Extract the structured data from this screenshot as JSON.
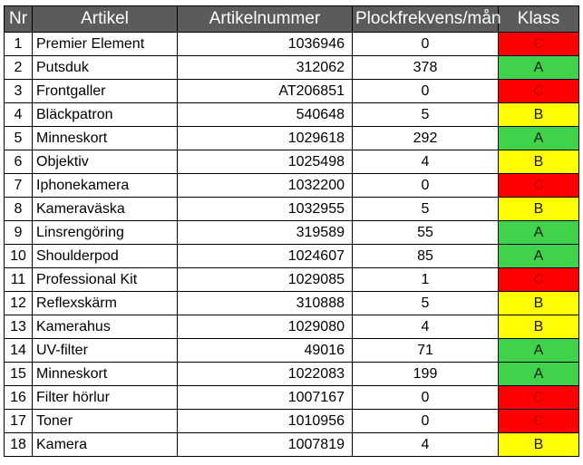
{
  "headers": {
    "nr": "Nr",
    "artikel": "Artikel",
    "artikelnummer": "Artikelnummer",
    "plockfrekvens": "Plockfrekvens/mån",
    "klass": "Klass"
  },
  "colors": {
    "header_bg": "#5b5b5b",
    "class_A": "#3fd24a",
    "class_B": "#ffff00",
    "class_C": "#ff0000"
  },
  "rows": [
    {
      "nr": "1",
      "artikel": "Premier Element",
      "artikelnummer": "1036946",
      "plockfrekvens": "0",
      "klass": "C"
    },
    {
      "nr": "2",
      "artikel": "Putsduk",
      "artikelnummer": "312062",
      "plockfrekvens": "378",
      "klass": "A"
    },
    {
      "nr": "3",
      "artikel": "Frontgaller",
      "artikelnummer": "AT206851",
      "plockfrekvens": "0",
      "klass": "C"
    },
    {
      "nr": "4",
      "artikel": "Bläckpatron",
      "artikelnummer": "540648",
      "plockfrekvens": "5",
      "klass": "B"
    },
    {
      "nr": "5",
      "artikel": "Minneskort",
      "artikelnummer": "1029618",
      "plockfrekvens": "292",
      "klass": "A"
    },
    {
      "nr": "6",
      "artikel": "Objektiv",
      "artikelnummer": "1025498",
      "plockfrekvens": "4",
      "klass": "B"
    },
    {
      "nr": "7",
      "artikel": "Iphonekamera",
      "artikelnummer": "1032200",
      "plockfrekvens": "0",
      "klass": "C"
    },
    {
      "nr": "8",
      "artikel": "Kameraväska",
      "artikelnummer": "1032955",
      "plockfrekvens": "5",
      "klass": "B"
    },
    {
      "nr": "9",
      "artikel": "Linsrengöring",
      "artikelnummer": "319589",
      "plockfrekvens": "55",
      "klass": "A"
    },
    {
      "nr": "10",
      "artikel": "Shoulderpod",
      "artikelnummer": "1024607",
      "plockfrekvens": "85",
      "klass": "A"
    },
    {
      "nr": "11",
      "artikel": "Professional Kit",
      "artikelnummer": "1029085",
      "plockfrekvens": "1",
      "klass": "C"
    },
    {
      "nr": "12",
      "artikel": "Reflexskärm",
      "artikelnummer": "310888",
      "plockfrekvens": "5",
      "klass": "B"
    },
    {
      "nr": "13",
      "artikel": "Kamerahus",
      "artikelnummer": "1029080",
      "plockfrekvens": "4",
      "klass": "B"
    },
    {
      "nr": "14",
      "artikel": "UV-filter",
      "artikelnummer": "49016",
      "plockfrekvens": "71",
      "klass": "A"
    },
    {
      "nr": "15",
      "artikel": "Minneskort",
      "artikelnummer": "1022083",
      "plockfrekvens": "199",
      "klass": "A"
    },
    {
      "nr": "16",
      "artikel": "Filter hörlur",
      "artikelnummer": "1007167",
      "plockfrekvens": "0",
      "klass": "C"
    },
    {
      "nr": "17",
      "artikel": "Toner",
      "artikelnummer": "1010956",
      "plockfrekvens": "0",
      "klass": "C"
    },
    {
      "nr": "18",
      "artikel": "Kamera",
      "artikelnummer": "1007819",
      "plockfrekvens": "4",
      "klass": "B"
    }
  ]
}
